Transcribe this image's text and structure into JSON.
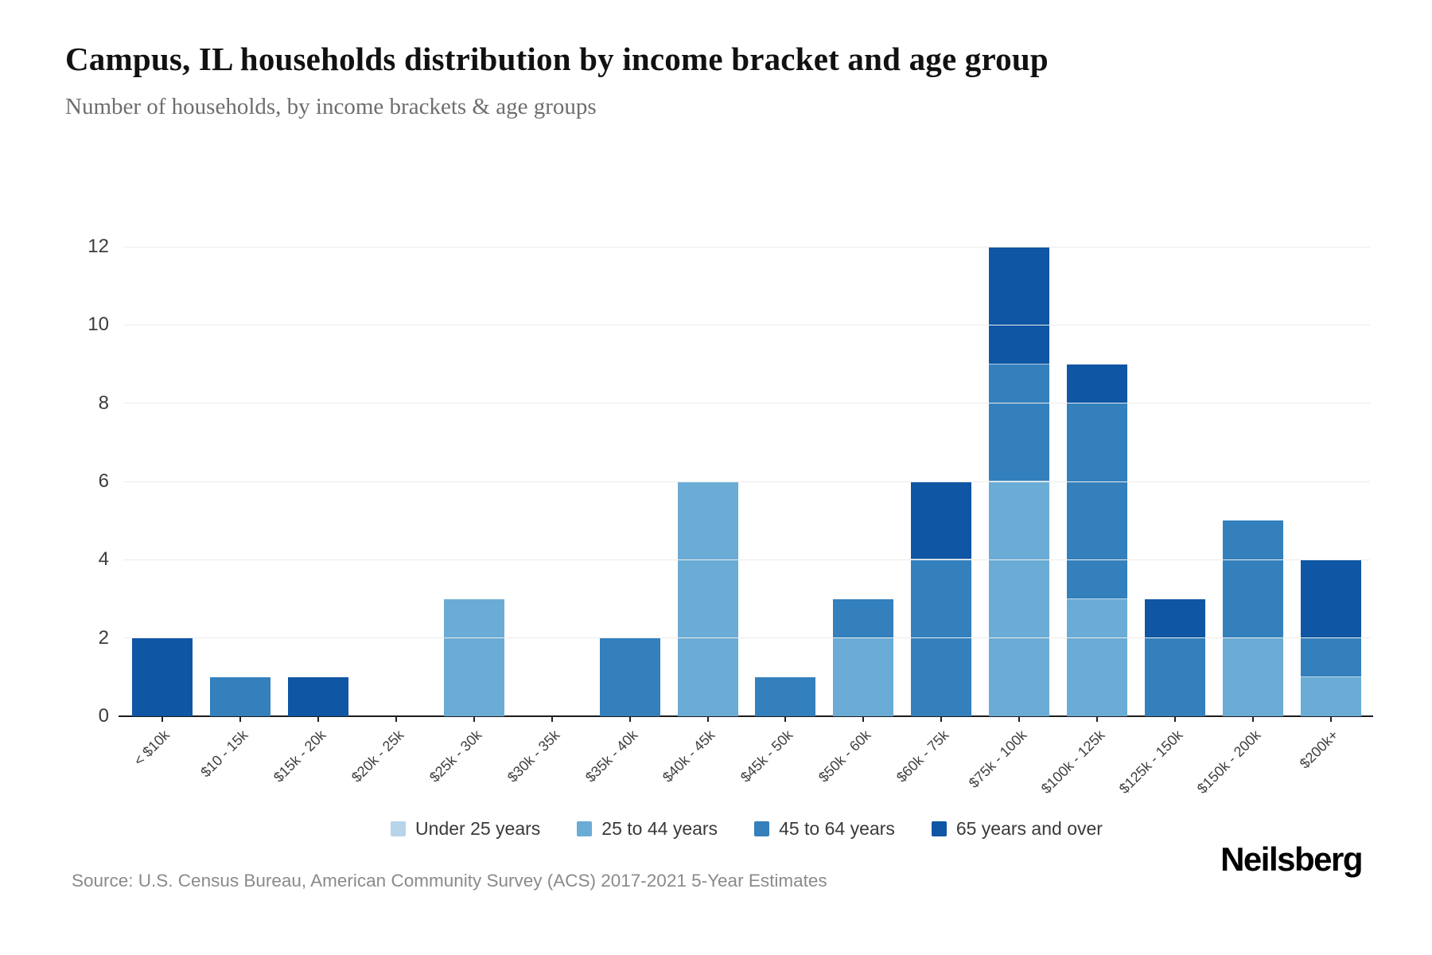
{
  "header": {
    "title": "Campus, IL households distribution by income bracket and age group",
    "subtitle": "Number of households, by income brackets & age groups"
  },
  "chart_data": {
    "type": "bar",
    "stacked": true,
    "title": "Campus, IL households distribution by income bracket and age group",
    "subtitle": "Number of households, by income brackets & age groups",
    "xlabel": "",
    "ylabel": "",
    "ylim": [
      0,
      12
    ],
    "ytick_step": 2,
    "grid": true,
    "legend_position": "bottom",
    "categories": [
      "< $10k",
      "$10 - 15k",
      "$15k - 20k",
      "$20k - 25k",
      "$25k - 30k",
      "$30k - 35k",
      "$35k - 40k",
      "$40k - 45k",
      "$45k - 50k",
      "$50k - 60k",
      "$60k - 75k",
      "$75k - 100k",
      "$100k - 125k",
      "$125k - 150k",
      "$150k - 200k",
      "$200k+"
    ],
    "series": [
      {
        "name": "Under 25 years",
        "color": "#b7d4e9",
        "values": [
          0,
          0,
          0,
          0,
          0,
          0,
          0,
          0,
          0,
          0,
          0,
          0,
          0,
          0,
          0,
          0
        ]
      },
      {
        "name": "25 to 44 years",
        "color": "#6aacd5",
        "values": [
          0,
          0,
          0,
          0,
          3,
          0,
          0,
          6,
          0,
          2,
          0,
          6,
          3,
          0,
          2,
          1
        ]
      },
      {
        "name": "45 to 64 years",
        "color": "#3380bd",
        "values": [
          0,
          1,
          0,
          0,
          0,
          0,
          2,
          0,
          1,
          1,
          4,
          3,
          5,
          2,
          3,
          1
        ]
      },
      {
        "name": "65 years and over",
        "color": "#0f56a4",
        "values": [
          2,
          0,
          1,
          0,
          0,
          0,
          0,
          0,
          0,
          0,
          2,
          3,
          1,
          1,
          0,
          2
        ]
      }
    ]
  },
  "footer": {
    "source": "Source: U.S. Census Bureau, American Community Survey (ACS) 2017-2021 5-Year Estimates",
    "brand": "Neilsberg"
  }
}
